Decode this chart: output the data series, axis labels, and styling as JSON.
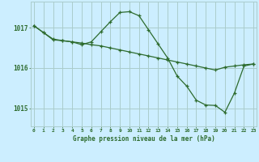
{
  "hours": [
    0,
    1,
    2,
    3,
    4,
    5,
    6,
    7,
    8,
    9,
    10,
    11,
    12,
    13,
    14,
    15,
    16,
    17,
    18,
    19,
    20,
    21,
    22,
    23
  ],
  "line1": [
    1017.05,
    1016.88,
    1016.72,
    1016.68,
    1016.65,
    1016.62,
    1016.58,
    1016.55,
    1016.5,
    1016.45,
    1016.4,
    1016.35,
    1016.3,
    1016.25,
    1016.2,
    1016.15,
    1016.1,
    1016.05,
    1016.0,
    1015.95,
    1016.02,
    1016.05,
    1016.08,
    1016.1
  ],
  "line2": [
    1017.05,
    1016.88,
    1016.7,
    1016.68,
    1016.65,
    1016.58,
    1016.65,
    1016.9,
    1017.15,
    1017.38,
    1017.4,
    1017.3,
    1016.95,
    1016.6,
    1016.25,
    1015.8,
    1015.55,
    1015.2,
    1015.08,
    1015.07,
    1014.9,
    1015.38,
    1016.05,
    1016.1
  ],
  "line_color": "#2d6b2d",
  "bg_color": "#cceeff",
  "grid_color": "#aacccc",
  "text_color": "#2d6b2d",
  "ylabel_vals": [
    1015,
    1016,
    1017
  ],
  "xlabel": "Graphe pression niveau de la mer (hPa)",
  "ylim_min": 1014.55,
  "ylim_max": 1017.65,
  "xlim_min": 0,
  "xlim_max": 23
}
